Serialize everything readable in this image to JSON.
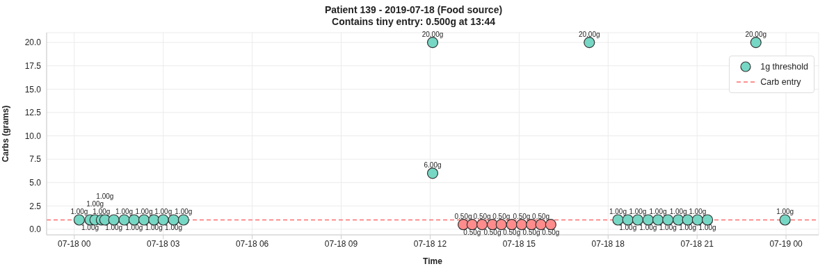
{
  "chart_data": {
    "type": "scatter",
    "title": "Patient 139 - 2019-07-18 (Food source)",
    "subtitle": "Contains tiny entry: 0.500g at 13:44",
    "xlabel": "Time",
    "ylabel": "Carbs (grams)",
    "series": [
      {
        "name": "1g threshold",
        "color": "#76d7c4",
        "x": [
          "2019-07-18T00:10",
          "2019-07-18T00:32",
          "2019-07-18T00:42",
          "2019-07-18T00:55",
          "2019-07-18T01:02",
          "2019-07-18T01:20",
          "2019-07-18T01:41",
          "2019-07-18T02:01",
          "2019-07-18T02:21",
          "2019-07-18T02:41",
          "2019-07-18T03:00",
          "2019-07-18T03:21",
          "2019-07-18T03:41",
          "2019-07-18T12:05",
          "2019-07-18T12:05",
          "2019-07-18T17:22",
          "2019-07-18T18:20",
          "2019-07-18T18:40",
          "2019-07-18T19:00",
          "2019-07-18T19:21",
          "2019-07-18T19:41",
          "2019-07-18T20:01",
          "2019-07-18T20:22",
          "2019-07-18T20:41",
          "2019-07-18T21:01",
          "2019-07-18T21:21",
          "2019-07-18T22:59",
          "2019-07-18T23:58"
        ],
        "values": [
          1,
          1,
          1,
          1,
          1,
          1,
          1,
          1,
          1,
          1,
          1,
          1,
          1,
          20,
          6,
          20,
          1,
          1,
          1,
          1,
          1,
          1,
          1,
          1,
          1,
          1,
          20,
          1
        ],
        "value_labels": [
          "1.00g",
          "1.00g",
          "1.00g",
          "1.00g",
          "1.00g",
          "1.00g",
          "1.00g",
          "1.00g",
          "1.00g",
          "1.00g",
          "1.00g",
          "1.00g",
          "1.00g",
          "20.00g",
          "6.00g",
          "20.00g",
          "1.00g",
          "1.00g",
          "1.00g",
          "1.00g",
          "1.00g",
          "1.00g",
          "1.00g",
          "1.00g",
          "1.00g",
          "1.00g",
          "20.00g",
          "1.00g"
        ]
      },
      {
        "color": "#ff8c8c",
        "x": [
          "2019-07-18T13:07",
          "2019-07-18T13:25",
          "2019-07-18T13:45",
          "2019-07-18T14:06",
          "2019-07-18T14:24",
          "2019-07-18T14:45",
          "2019-07-18T15:05",
          "2019-07-18T15:25",
          "2019-07-18T15:44",
          "2019-07-18T16:04"
        ],
        "values": [
          0.5,
          0.5,
          0.5,
          0.5,
          0.5,
          0.5,
          0.5,
          0.5,
          0.5,
          0.5
        ],
        "value_labels": [
          "0.50g",
          "0.50g",
          "0.50g",
          "0.50g",
          "0.50g",
          "0.50g",
          "0.50g",
          "0.50g",
          "0.50g",
          "0.50g"
        ]
      }
    ],
    "xlim": [
      "2019-07-17T23:04",
      "2019-07-19T01:06"
    ],
    "xticks": [
      {
        "value": "2019-07-18T00:00",
        "label": "07-18 00"
      },
      {
        "value": "2019-07-18T03:00",
        "label": "07-18 03"
      },
      {
        "value": "2019-07-18T06:00",
        "label": "07-18 06"
      },
      {
        "value": "2019-07-18T09:00",
        "label": "07-18 09"
      },
      {
        "value": "2019-07-18T12:00",
        "label": "07-18 12"
      },
      {
        "value": "2019-07-18T15:00",
        "label": "07-18 15"
      },
      {
        "value": "2019-07-18T18:00",
        "label": "07-18 18"
      },
      {
        "value": "2019-07-18T21:00",
        "label": "07-18 21"
      },
      {
        "value": "2019-07-19T00:00",
        "label": "07-19 00"
      }
    ],
    "ylim": [
      -0.6,
      21.05
    ],
    "yticks": [
      {
        "value": 0,
        "label": "0.0"
      },
      {
        "value": 2.5,
        "label": "2.5"
      },
      {
        "value": 5,
        "label": "5.0"
      },
      {
        "value": 7.5,
        "label": "7.5"
      },
      {
        "value": 10,
        "label": "10.0"
      },
      {
        "value": 12.5,
        "label": "12.5"
      },
      {
        "value": 15,
        "label": "15.0"
      },
      {
        "value": 17.5,
        "label": "17.5"
      },
      {
        "value": 20,
        "label": "20.0"
      }
    ],
    "ref_lines": [
      {
        "axis": "y",
        "value": 1,
        "label": "Carb entry",
        "color": "#ff6b6b",
        "line_style": "dashed"
      }
    ],
    "grid": true,
    "legend": "top right",
    "marker": "circle"
  }
}
